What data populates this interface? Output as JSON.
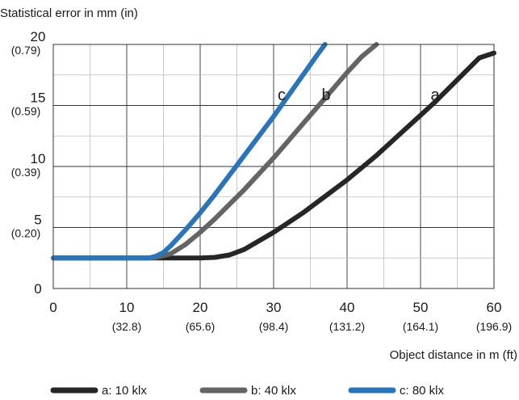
{
  "chart_data": {
    "type": "line",
    "ylabel": "Statistical error in mm (in)",
    "xlabel": "Object distance in m (ft)",
    "xlim": [
      0,
      60
    ],
    "ylim": [
      0,
      20
    ],
    "grid": true,
    "x_ticks": [
      {
        "value": 0,
        "label": "0",
        "sublabel": ""
      },
      {
        "value": 10,
        "label": "10",
        "sublabel": "(32.8)"
      },
      {
        "value": 20,
        "label": "20",
        "sublabel": "(65.6)"
      },
      {
        "value": 30,
        "label": "30",
        "sublabel": "(98.4)"
      },
      {
        "value": 40,
        "label": "40",
        "sublabel": "(131.2)"
      },
      {
        "value": 50,
        "label": "50",
        "sublabel": "(164.1)"
      },
      {
        "value": 60,
        "label": "60",
        "sublabel": "(196.9)"
      }
    ],
    "y_ticks": [
      {
        "value": 0,
        "label": "0",
        "sublabel": ""
      },
      {
        "value": 5,
        "label": "5",
        "sublabel": "(0.20)"
      },
      {
        "value": 10,
        "label": "10",
        "sublabel": "(0.39)"
      },
      {
        "value": 15,
        "label": "15",
        "sublabel": "(0.59)"
      },
      {
        "value": 20,
        "label": "20",
        "sublabel": "(0.79)"
      }
    ],
    "series": [
      {
        "name": "a: 10 klx",
        "curve_label": "a",
        "color": "#262626",
        "points": [
          [
            0,
            2.5
          ],
          [
            5,
            2.5
          ],
          [
            10,
            2.5
          ],
          [
            15,
            2.5
          ],
          [
            20,
            2.5
          ],
          [
            22,
            2.55
          ],
          [
            24,
            2.75
          ],
          [
            26,
            3.2
          ],
          [
            28,
            3.9
          ],
          [
            30,
            4.6
          ],
          [
            32,
            5.4
          ],
          [
            34,
            6.2
          ],
          [
            36,
            7.1
          ],
          [
            38,
            8.0
          ],
          [
            40,
            8.9
          ],
          [
            42,
            9.9
          ],
          [
            44,
            10.9
          ],
          [
            46,
            12.0
          ],
          [
            48,
            13.1
          ],
          [
            50,
            14.2
          ],
          [
            52,
            15.3
          ],
          [
            54,
            16.5
          ],
          [
            56,
            17.7
          ],
          [
            58,
            18.9
          ],
          [
            60,
            19.3
          ]
        ]
      },
      {
        "name": "b: 40 klx",
        "curve_label": "b",
        "color": "#646464",
        "points": [
          [
            0,
            2.5
          ],
          [
            5,
            2.5
          ],
          [
            10,
            2.5
          ],
          [
            13,
            2.5
          ],
          [
            14,
            2.55
          ],
          [
            16,
            2.85
          ],
          [
            18,
            3.6
          ],
          [
            20,
            4.6
          ],
          [
            22,
            5.7
          ],
          [
            24,
            6.9
          ],
          [
            26,
            8.1
          ],
          [
            28,
            9.4
          ],
          [
            30,
            10.7
          ],
          [
            32,
            12.1
          ],
          [
            34,
            13.5
          ],
          [
            36,
            14.9
          ],
          [
            38,
            16.3
          ],
          [
            40,
            17.7
          ],
          [
            42,
            19.0
          ],
          [
            44,
            20.0
          ]
        ]
      },
      {
        "name": "c: 80 klx",
        "curve_label": "c",
        "color": "#2b74b8",
        "points": [
          [
            0,
            2.5
          ],
          [
            5,
            2.5
          ],
          [
            10,
            2.5
          ],
          [
            13,
            2.5
          ],
          [
            14,
            2.65
          ],
          [
            15,
            2.95
          ],
          [
            16,
            3.5
          ],
          [
            18,
            4.8
          ],
          [
            20,
            6.2
          ],
          [
            22,
            7.7
          ],
          [
            24,
            9.3
          ],
          [
            26,
            10.9
          ],
          [
            28,
            12.5
          ],
          [
            30,
            14.1
          ],
          [
            32,
            15.8
          ],
          [
            34,
            17.5
          ],
          [
            36,
            19.2
          ],
          [
            37,
            20.0
          ]
        ]
      }
    ]
  }
}
